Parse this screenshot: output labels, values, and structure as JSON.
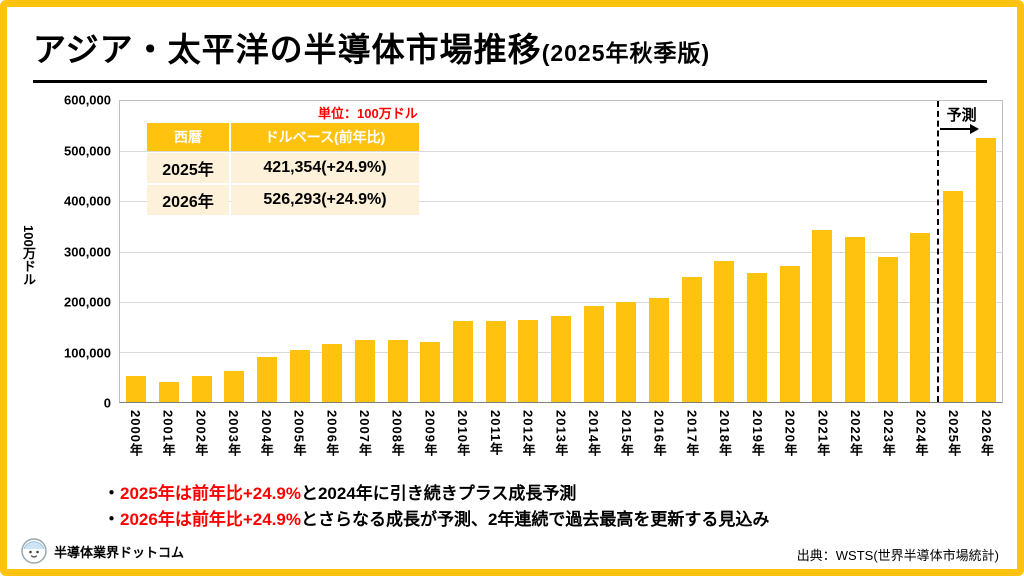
{
  "header": {
    "title_main": "アジア・太平洋の半導体市場推移",
    "title_sub": "(2025年秋季版)"
  },
  "chart_data": {
    "type": "bar",
    "title": "アジア・太平洋の半導体市場推移(2025年秋季版)",
    "unit_label": "単位：100万ドル",
    "ylabel": "100万ドル",
    "ylim": [
      0,
      600000
    ],
    "ytick_interval": 100000,
    "ytick_labels": [
      "600,000",
      "500,000",
      "400,000",
      "300,000",
      "200,000",
      "100,000",
      "0"
    ],
    "categories": [
      "2000年",
      "2001年",
      "2002年",
      "2003年",
      "2004年",
      "2005年",
      "2006年",
      "2007年",
      "2008年",
      "2009年",
      "2010年",
      "2011年",
      "2012年",
      "2013年",
      "2014年",
      "2015年",
      "2016年",
      "2017年",
      "2018年",
      "2019年",
      "2020年",
      "2021年",
      "2022年",
      "2023年",
      "2024年",
      "2025年",
      "2026年"
    ],
    "values": [
      51000,
      40500,
      51500,
      61500,
      89000,
      103000,
      116500,
      123000,
      123000,
      119000,
      160500,
      162000,
      163000,
      172000,
      192000,
      200000,
      208000,
      249000,
      281000,
      258000,
      271000,
      343000,
      329000,
      289000,
      337353,
      421354,
      526293
    ],
    "bar_color": "#FFC20E",
    "grid": true,
    "legend": false,
    "forecast": {
      "label": "予測",
      "start_index": 25
    }
  },
  "table": {
    "headers": [
      "西暦",
      "ドルベース(前年比)"
    ],
    "rows": [
      [
        "2025年",
        "421,354(+24.9%)"
      ],
      [
        "2026年",
        "526,293(+24.9%)"
      ]
    ]
  },
  "notes": [
    {
      "bullet": "・",
      "highlight": "2025年は前年比+24.9%",
      "text": "と2024年に引き続きプラス成長予測"
    },
    {
      "bullet": "・",
      "highlight": "2026年は前年比+24.9%",
      "text": "とさらなる成長が予測、2年連続で過去最高を更新する見込み"
    }
  ],
  "footer": {
    "brand": "半導体業界ドットコム",
    "source": "出典：WSTS(世界半導体市場統計)"
  },
  "colors": {
    "accent_yellow": "#FFC20E",
    "highlight_red": "#FF0000",
    "table_row_bg": "#FDF2D9"
  }
}
